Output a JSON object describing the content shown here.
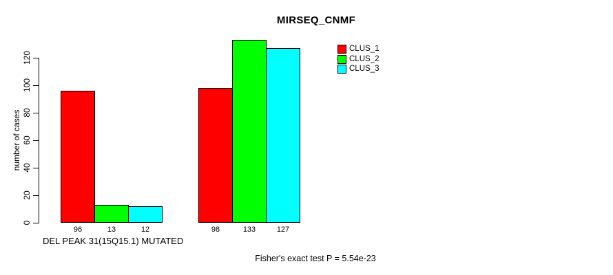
{
  "chart_data": {
    "type": "bar",
    "title": "MIRSEQ_CNMF",
    "ylabel": "number of cases",
    "xlabel": "",
    "group_label": "DEL PEAK 31(15Q15.1) MUTATED",
    "categories": [
      "DEL PEAK 31(15Q15.1) MUTATED",
      ""
    ],
    "yticks": [
      0,
      20,
      40,
      60,
      80,
      100,
      120
    ],
    "ylim": [
      0,
      120
    ],
    "grid": false,
    "legend_position": "top-right-inside",
    "series": [
      {
        "name": "CLUS_1",
        "color": "#ff0000",
        "values": [
          96,
          98
        ]
      },
      {
        "name": "CLUS_2",
        "color": "#00ff00",
        "values": [
          13,
          133
        ]
      },
      {
        "name": "CLUS_3",
        "color": "#00ffff",
        "values": [
          12,
          127
        ]
      }
    ],
    "bar_value_labels": [
      [
        "96",
        "13",
        "12"
      ],
      [
        "98",
        "133",
        "127"
      ]
    ]
  },
  "annotation": "Fisher's exact test P = 5.54e-23",
  "colors": {
    "background": "#ffffff",
    "axis": "#000000",
    "text": "#000000",
    "clus_1": "#ff0000",
    "clus_2": "#00ff00",
    "clus_3": "#00ffff"
  }
}
